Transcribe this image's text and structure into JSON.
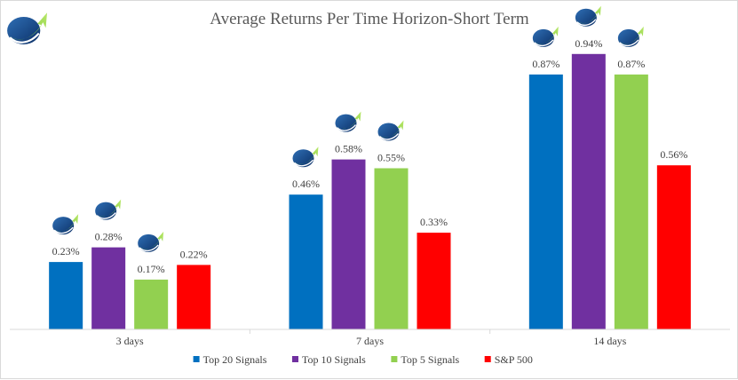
{
  "chart_data": {
    "type": "bar",
    "title": "Average Returns Per Time Horizon-Short Term",
    "categories": [
      "3 days",
      "7 days",
      "14 days"
    ],
    "series": [
      {
        "name": "Top 20 Signals",
        "color": "#0070c0",
        "values": [
          0.23,
          0.46,
          0.87
        ],
        "labels": [
          "0.23%",
          "0.46%",
          "0.87%"
        ]
      },
      {
        "name": "Top 10 Signals",
        "color": "#7030a0",
        "values": [
          0.28,
          0.58,
          0.94
        ],
        "labels": [
          "0.28%",
          "0.58%",
          "0.94%"
        ]
      },
      {
        "name": "Top 5 Signals",
        "color": "#92d050",
        "values": [
          0.17,
          0.55,
          0.87
        ],
        "labels": [
          "0.17%",
          "0.55%",
          "0.87%"
        ]
      },
      {
        "name": "S&P 500",
        "color": "#ff0000",
        "values": [
          0.22,
          0.33,
          0.56
        ],
        "labels": [
          "0.22%",
          "0.33%",
          "0.56%"
        ]
      }
    ],
    "ylim": [
      0,
      1.0
    ],
    "grid": false,
    "legend_position": "bottom",
    "icon_series": [
      "Top 20 Signals",
      "Top 10 Signals",
      "Top 5 Signals"
    ]
  },
  "logo": {
    "icon": "growth-arrow-globe-logo"
  }
}
